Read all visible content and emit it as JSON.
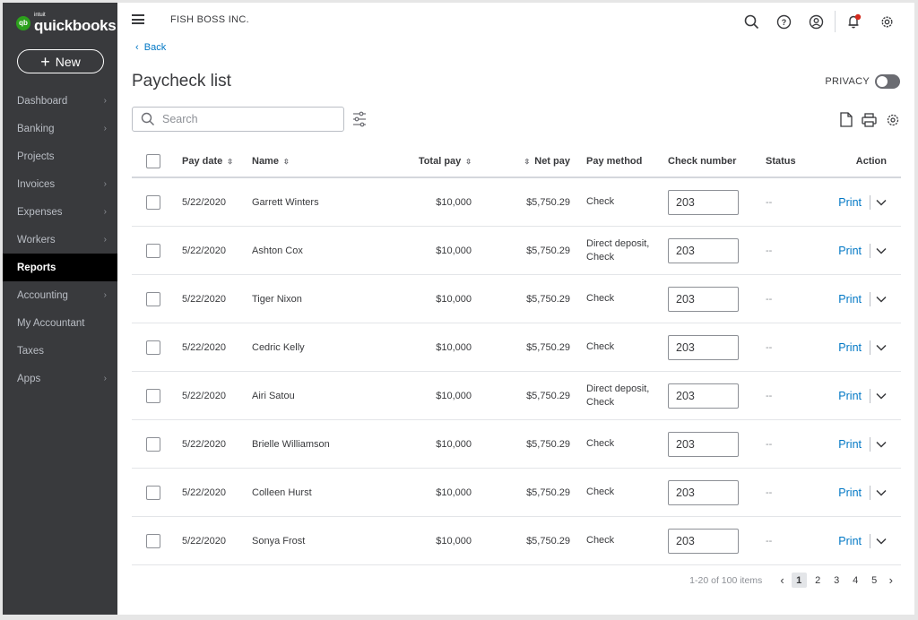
{
  "brand": {
    "mark": "qb",
    "intuit": "intuit",
    "name": "quickbooks"
  },
  "sidebar": {
    "new_label": "New",
    "items": [
      {
        "label": "Dashboard",
        "chevron": true,
        "active": false
      },
      {
        "label": "Banking",
        "chevron": true,
        "active": false
      },
      {
        "label": "Projects",
        "chevron": false,
        "active": false
      },
      {
        "label": "Invoices",
        "chevron": true,
        "active": false
      },
      {
        "label": "Expenses",
        "chevron": true,
        "active": false
      },
      {
        "label": "Workers",
        "chevron": true,
        "active": false
      },
      {
        "label": "Reports",
        "chevron": false,
        "active": true
      },
      {
        "label": "Accounting",
        "chevron": true,
        "active": false
      },
      {
        "label": "My Accountant",
        "chevron": false,
        "active": false
      },
      {
        "label": "Taxes",
        "chevron": false,
        "active": false
      },
      {
        "label": "Apps",
        "chevron": true,
        "active": false
      }
    ]
  },
  "header": {
    "company": "FISH BOSS INC.",
    "icons": [
      "search-icon",
      "help-icon",
      "account-icon",
      "notifications-icon",
      "settings-icon"
    ]
  },
  "page": {
    "back_label": "Back",
    "title": "Paycheck list",
    "privacy_label": "PRIVACY",
    "privacy_on": false,
    "search_placeholder": "Search"
  },
  "table": {
    "headers": {
      "pay_date": "Pay date",
      "name": "Name",
      "total_pay": "Total pay",
      "net_pay": "Net pay",
      "pay_method": "Pay method",
      "check_number": "Check number",
      "status": "Status",
      "action": "Action"
    },
    "rows": [
      {
        "date": "5/22/2020",
        "name": "Garrett Winters",
        "total": "$10,000",
        "net": "$5,750.29",
        "method": "Check",
        "check_number": "203",
        "status": "--",
        "action": "Print"
      },
      {
        "date": "5/22/2020",
        "name": "Ashton Cox",
        "total": "$10,000",
        "net": "$5,750.29",
        "method": "Direct deposit, Check",
        "check_number": "203",
        "status": "--",
        "action": "Print"
      },
      {
        "date": "5/22/2020",
        "name": "Tiger Nixon",
        "total": "$10,000",
        "net": "$5,750.29",
        "method": "Check",
        "check_number": "203",
        "status": "--",
        "action": "Print"
      },
      {
        "date": "5/22/2020",
        "name": "Cedric Kelly",
        "total": "$10,000",
        "net": "$5,750.29",
        "method": "Check",
        "check_number": "203",
        "status": "--",
        "action": "Print"
      },
      {
        "date": "5/22/2020",
        "name": "Airi Satou",
        "total": "$10,000",
        "net": "$5,750.29",
        "method": "Direct deposit, Check",
        "check_number": "203",
        "status": "--",
        "action": "Print"
      },
      {
        "date": "5/22/2020",
        "name": "Brielle Williamson",
        "total": "$10,000",
        "net": "$5,750.29",
        "method": "Check",
        "check_number": "203",
        "status": "--",
        "action": "Print"
      },
      {
        "date": "5/22/2020",
        "name": "Colleen Hurst",
        "total": "$10,000",
        "net": "$5,750.29",
        "method": "Check",
        "check_number": "203",
        "status": "--",
        "action": "Print"
      },
      {
        "date": "5/22/2020",
        "name": "Sonya Frost",
        "total": "$10,000",
        "net": "$5,750.29",
        "method": "Check",
        "check_number": "203",
        "status": "--",
        "action": "Print"
      }
    ]
  },
  "pagination": {
    "range": "1-20 of 100 items",
    "pages": [
      "1",
      "2",
      "3",
      "4",
      "5"
    ],
    "current": "1"
  },
  "colors": {
    "sidebar_bg": "#393a3d",
    "link": "#0077c5",
    "brand_green": "#2ca01c",
    "notification_red": "#d52b1e"
  }
}
